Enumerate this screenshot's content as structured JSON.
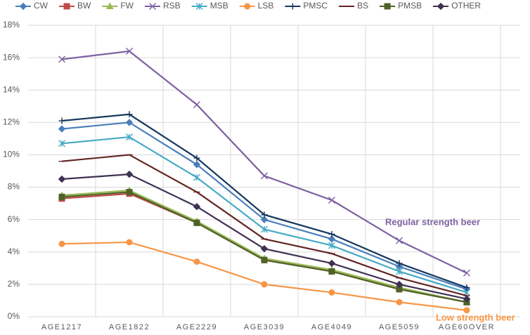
{
  "chart_data": {
    "type": "line",
    "categories": [
      "AGE1217",
      "AGE1822",
      "AGE2229",
      "AGE3039",
      "AGE4049",
      "AGE5059",
      "AGE60OVER"
    ],
    "ylim": [
      0,
      18
    ],
    "yticks": [
      {
        "value": 0,
        "label": "0%"
      },
      {
        "value": 2,
        "label": "2%"
      },
      {
        "value": 4,
        "label": "4%"
      },
      {
        "value": 6,
        "label": "6%"
      },
      {
        "value": 8,
        "label": "8%"
      },
      {
        "value": 10,
        "label": "10%"
      },
      {
        "value": 12,
        "label": "12%"
      },
      {
        "value": 14,
        "label": "14%"
      },
      {
        "value": 16,
        "label": "16%"
      },
      {
        "value": 18,
        "label": "18%"
      }
    ],
    "grid": true,
    "legend": "top",
    "series": [
      {
        "name": "CW",
        "color": "#4a7ebb",
        "marker": "diamond",
        "values": [
          11.6,
          12.0,
          9.4,
          6.0,
          4.8,
          3.1,
          1.7
        ]
      },
      {
        "name": "BW",
        "color": "#be4b48",
        "marker": "square",
        "values": [
          7.3,
          7.6,
          5.8,
          3.5,
          2.8,
          1.7,
          0.9
        ]
      },
      {
        "name": "FW",
        "color": "#98b954",
        "marker": "triangle",
        "values": [
          7.5,
          7.8,
          5.9,
          3.6,
          2.9,
          1.8,
          0.9
        ]
      },
      {
        "name": "RSB",
        "color": "#7d60a0",
        "marker": "x",
        "values": [
          15.9,
          16.4,
          13.1,
          8.7,
          7.2,
          4.7,
          2.7
        ]
      },
      {
        "name": "MSB",
        "color": "#46aac5",
        "marker": "star",
        "values": [
          10.7,
          11.1,
          8.6,
          5.4,
          4.4,
          2.8,
          1.5
        ]
      },
      {
        "name": "LSB",
        "color": "#f79646",
        "marker": "circle",
        "values": [
          4.5,
          4.6,
          3.4,
          2.0,
          1.5,
          0.9,
          0.4
        ]
      },
      {
        "name": "PMSC",
        "color": "#17375e",
        "marker": "plus",
        "values": [
          12.1,
          12.5,
          9.8,
          6.3,
          5.1,
          3.3,
          1.8
        ]
      },
      {
        "name": "BS",
        "color": "#632523",
        "marker": "dash",
        "values": [
          9.6,
          10.0,
          7.7,
          4.8,
          3.9,
          2.4,
          1.3
        ]
      },
      {
        "name": "PMSB",
        "color": "#4f6228",
        "marker": "square",
        "values": [
          7.4,
          7.7,
          5.8,
          3.5,
          2.8,
          1.7,
          0.9
        ]
      },
      {
        "name": "OTHER",
        "color": "#3f3151",
        "marker": "diamond",
        "values": [
          8.5,
          8.8,
          6.8,
          4.2,
          3.3,
          2.0,
          1.1
        ]
      }
    ],
    "annotations": [
      {
        "text": "Regular strength beer",
        "color": "#7d60a0"
      },
      {
        "text": "Low strength beer",
        "color": "#f79646"
      }
    ]
  }
}
